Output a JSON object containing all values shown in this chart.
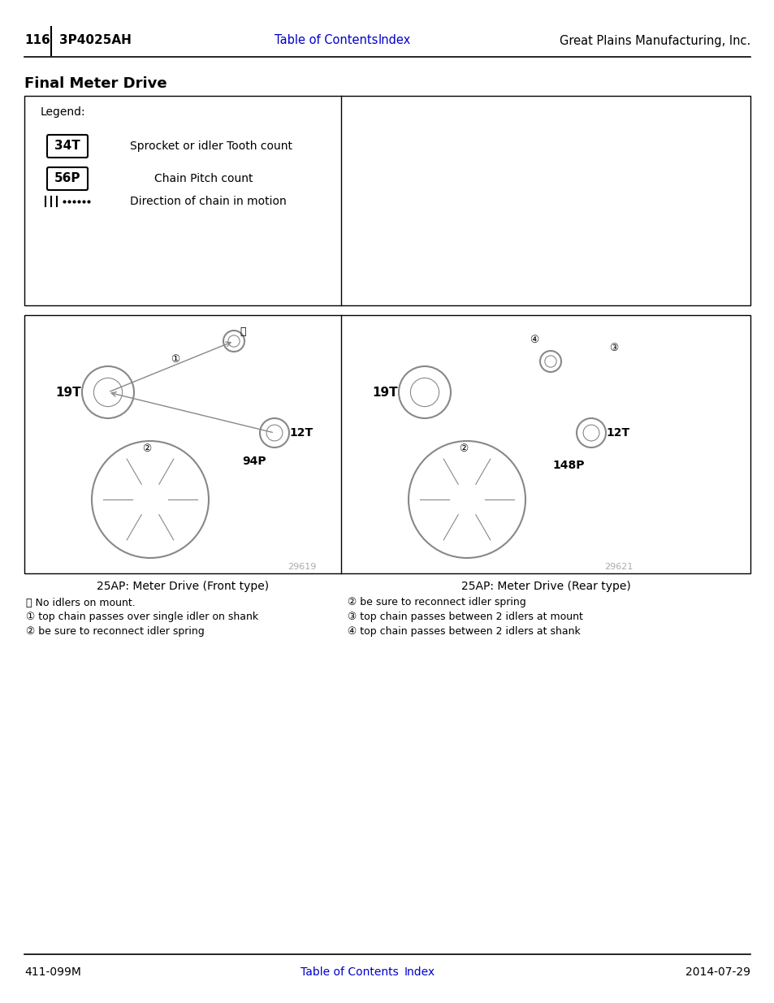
{
  "page_number": "116",
  "model": "3P4025AH",
  "toc_link": "Table of Contents",
  "index_link": "Index",
  "company": "Great Plains Manufacturing, Inc.",
  "footer_left": "411-099M",
  "footer_right": "2014-07-29",
  "section_title": "Final Meter Drive",
  "legend_title": "Legend:",
  "legend_34T": "34T",
  "legend_56P": "56P",
  "legend_34T_desc": "Sprocket or idler Tooth count",
  "legend_56P_desc": "Chain Pitch count",
  "legend_chain_desc": "Direction of chain in motion",
  "left_diagram_title": "25AP: Meter Drive (Front type)",
  "left_image_ref": "29619",
  "left_callout_0": "⓪ No idlers on mount.",
  "left_callout_1": "① top chain passes over single idler on shank",
  "left_callout_2": "② be sure to reconnect idler spring",
  "right_diagram_title": "25AP: Meter Drive (Rear type)",
  "right_image_ref": "29621",
  "right_callout_0": "② be sure to reconnect idler spring",
  "right_callout_1": "③ top chain passes between 2 idlers at mount",
  "right_callout_2": "④ top chain passes between 2 idlers at shank",
  "left_label_19T": "19T",
  "left_label_12T": "12T",
  "left_label_94P": "94P",
  "left_callout_num_0": "⓪",
  "left_callout_num_1": "①",
  "left_callout_num_2": "②",
  "right_label_19T": "19T",
  "right_label_12T": "12T",
  "right_label_148P": "148P",
  "right_callout_num_2": "②",
  "right_callout_num_3": "③",
  "right_callout_num_4": "④",
  "link_color": "#0000CC",
  "text_color": "#000000",
  "bg_color": "#ffffff",
  "border_color": "#000000",
  "gray_color": "#aaaaaa",
  "header_line_color": "#000000",
  "footer_line_color": "#000000",
  "diagram_gray": "#888888"
}
